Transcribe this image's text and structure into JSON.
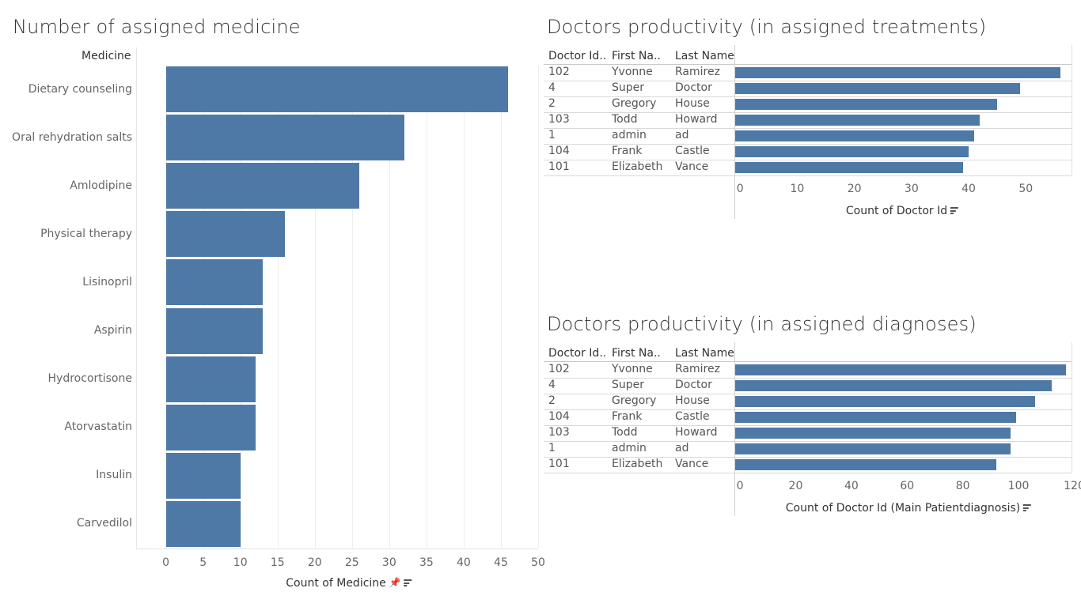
{
  "chart_data": [
    {
      "type": "bar",
      "orientation": "horizontal",
      "title": "Number of assigned medicine",
      "category_header": "Medicine",
      "categories": [
        "Dietary counseling",
        "Oral rehydration salts",
        "Amlodipine",
        "Physical therapy",
        "Lisinopril",
        "Aspirin",
        "Hydrocortisone",
        "Atorvastatin",
        "Insulin",
        "Carvedilol"
      ],
      "values": [
        46,
        32,
        26,
        16,
        13,
        13,
        12,
        12,
        10,
        10
      ],
      "xlabel": "Count of Medicine",
      "xlim": [
        -4,
        50
      ],
      "xticks": [
        0,
        5,
        10,
        15,
        20,
        25,
        30,
        35,
        40,
        45,
        50
      ],
      "grid": true,
      "color": "#4e79a7"
    },
    {
      "type": "bar",
      "orientation": "horizontal",
      "title": "Doctors productivity (in assigned treatments)",
      "table_headers": [
        "Doctor Id..",
        "First Na..",
        "Last Name"
      ],
      "rows": [
        {
          "id": "102",
          "first": "Yvonne",
          "last": "Ramirez",
          "value": 56
        },
        {
          "id": "4",
          "first": "Super",
          "last": "Doctor",
          "value": 49
        },
        {
          "id": "2",
          "first": "Gregory",
          "last": "House",
          "value": 45
        },
        {
          "id": "103",
          "first": "Todd",
          "last": "Howard",
          "value": 42
        },
        {
          "id": "1",
          "first": "admin",
          "last": "ad",
          "value": 41
        },
        {
          "id": "104",
          "first": "Frank",
          "last": "Castle",
          "value": 40
        },
        {
          "id": "101",
          "first": "Elizabeth",
          "last": "Vance",
          "value": 39
        }
      ],
      "xlabel": "Count of Doctor Id",
      "xlim": [
        -1,
        58
      ],
      "xticks": [
        0,
        10,
        20,
        30,
        40,
        50
      ],
      "color": "#4e79a7"
    },
    {
      "type": "bar",
      "orientation": "horizontal",
      "title": "Doctors productivity (in assigned diagnoses)",
      "table_headers": [
        "Doctor Id..",
        "First Na..",
        "Last Name"
      ],
      "rows": [
        {
          "id": "102",
          "first": "Yvonne",
          "last": "Ramirez",
          "value": 117
        },
        {
          "id": "4",
          "first": "Super",
          "last": "Doctor",
          "value": 112
        },
        {
          "id": "2",
          "first": "Gregory",
          "last": "House",
          "value": 106
        },
        {
          "id": "104",
          "first": "Frank",
          "last": "Castle",
          "value": 99
        },
        {
          "id": "103",
          "first": "Todd",
          "last": "Howard",
          "value": 97
        },
        {
          "id": "1",
          "first": "admin",
          "last": "ad",
          "value": 97
        },
        {
          "id": "101",
          "first": "Elizabeth",
          "last": "Vance",
          "value": 92
        }
      ],
      "xlabel": "Count of Doctor Id (Main Patientdiagnosis)",
      "xlim": [
        -2,
        119
      ],
      "xticks": [
        0,
        20,
        40,
        60,
        80,
        100,
        120
      ],
      "color": "#4e79a7"
    }
  ],
  "icons": {
    "pin": "pin-icon",
    "sort": "sort-descending-icon"
  }
}
